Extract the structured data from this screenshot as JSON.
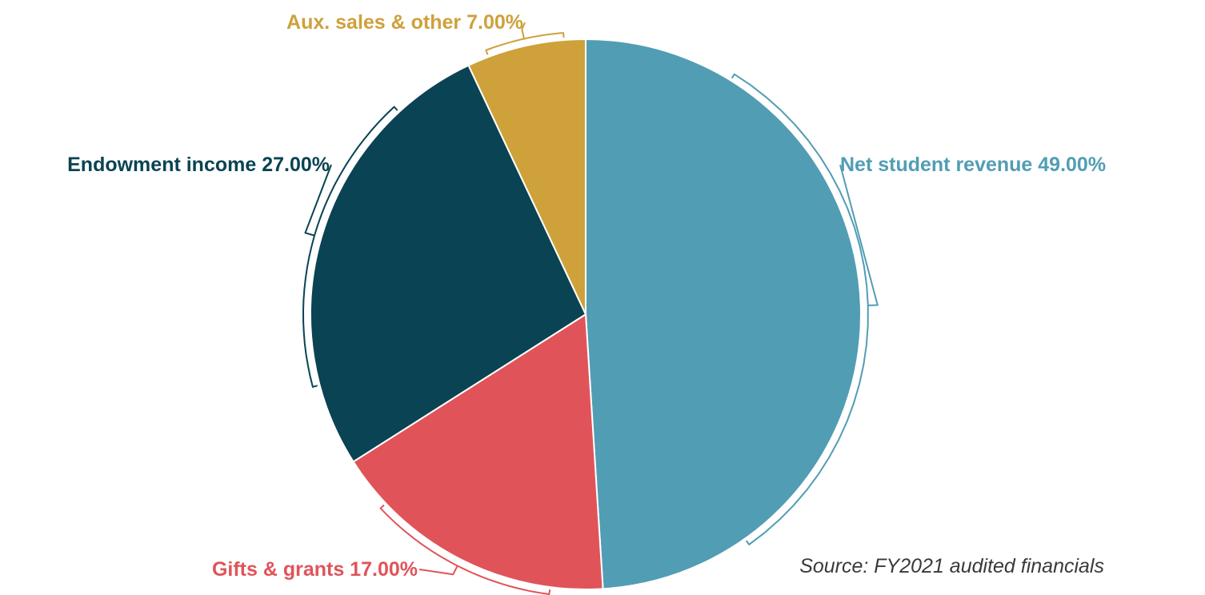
{
  "chart_data": {
    "type": "pie",
    "title": "",
    "slices": [
      {
        "label": "Net student revenue",
        "value": 49.0,
        "display": "Net student revenue 49.00%",
        "color": "#519db4"
      },
      {
        "label": "Gifts & grants",
        "value": 17.0,
        "display": "Gifts & grants 17.00%",
        "color": "#e05459"
      },
      {
        "label": "Endowment income",
        "value": 27.0,
        "display": "Endowment income 27.00%",
        "color": "#0a4353"
      },
      {
        "label": "Aux. sales & other",
        "value": 7.0,
        "display": "Aux. sales & other 7.00%",
        "color": "#cea13a"
      }
    ],
    "start_angle": "12 o'clock",
    "direction": "clockwise",
    "legend": "none",
    "labels": "outside with brackets"
  },
  "source_note": "Source: FY2021 audited financials"
}
